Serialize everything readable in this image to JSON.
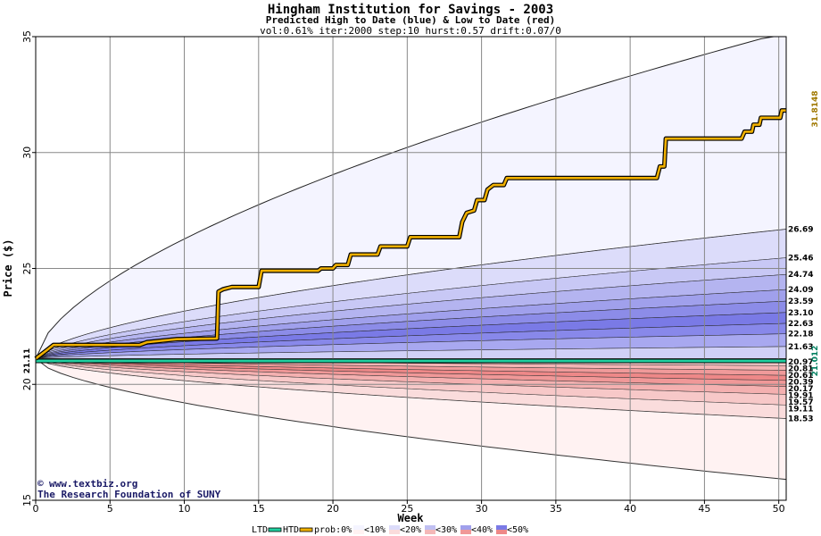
{
  "chart_data": {
    "type": "area",
    "title": "Hingham Institution for Savings - 2003",
    "subtitle": "Predicted High to Date (blue) &  Low to Date (red)",
    "params": "vol:0.61% iter:2000 step:10 hurst:0.57 drift:0.07/0",
    "xlabel": "Week",
    "ylabel": "Price ($)",
    "xlim": [
      0,
      50.5
    ],
    "ylim": [
      15,
      35
    ],
    "x_ticks": [
      0,
      5,
      10,
      15,
      20,
      25,
      30,
      35,
      40,
      45,
      50
    ],
    "y_ticks": [
      15,
      20,
      25,
      30,
      35
    ],
    "grid": true,
    "start_price": 21.11,
    "start_label": "21.11",
    "htd_label": "31.8148",
    "ltd_label": "21.012",
    "htd_color": "#b8860b",
    "ltd_color": "#008060",
    "high_bands": [
      {
        "end": 35.2,
        "label": "",
        "color": "#f4f4ff"
      },
      {
        "end": 26.69,
        "label": "26.69",
        "color": "#dcdcfa"
      },
      {
        "end": 25.46,
        "label": "25.46",
        "color": "#c8c8f5"
      },
      {
        "end": 24.74,
        "label": "24.74",
        "color": "#b4b4f0"
      },
      {
        "end": 24.09,
        "label": "24.09",
        "color": "#a0a0ec"
      },
      {
        "end": 23.59,
        "label": "23.59",
        "color": "#8c8ce8"
      },
      {
        "end": 23.1,
        "label": "23.10",
        "color": "#7a7ae6"
      },
      {
        "end": 22.63,
        "label": "22.63",
        "color": "#8888ea"
      },
      {
        "end": 22.18,
        "label": "22.18",
        "color": "#a8a8f0"
      },
      {
        "end": 21.63,
        "label": "21.63",
        "color": "#d0d0f7"
      }
    ],
    "low_bands": [
      {
        "end": 15.9,
        "label": "",
        "color": "#fff2f2"
      },
      {
        "end": 18.53,
        "label": "18.53",
        "color": "#fadcdc"
      },
      {
        "end": 19.11,
        "label": "19.11",
        "color": "#f7c8c8"
      },
      {
        "end": 19.57,
        "label": "19.57",
        "color": "#f4b0b0"
      },
      {
        "end": 19.91,
        "label": "19.91",
        "color": "#f09898"
      },
      {
        "end": 20.17,
        "label": "20.17",
        "color": "#ee8888"
      },
      {
        "end": 20.39,
        "label": "20.39",
        "color": "#f09a9a"
      },
      {
        "end": 20.61,
        "label": "20.61",
        "color": "#f4b4b4"
      },
      {
        "end": 20.81,
        "label": "20.81",
        "color": "#f8cccc"
      },
      {
        "end": 20.97,
        "label": "20.97",
        "color": "#fbe0e0"
      }
    ],
    "htd_series": {
      "name": "HTD",
      "points": [
        [
          0,
          21.11
        ],
        [
          0.7,
          21.45
        ],
        [
          1.2,
          21.7
        ],
        [
          7,
          21.7
        ],
        [
          7.5,
          21.82
        ],
        [
          9.5,
          21.95
        ],
        [
          12.2,
          21.98
        ],
        [
          12.3,
          24.0
        ],
        [
          12.6,
          24.1
        ],
        [
          13.2,
          24.2
        ],
        [
          15,
          24.2
        ],
        [
          15.2,
          24.9
        ],
        [
          19,
          24.9
        ],
        [
          19.2,
          25.0
        ],
        [
          20,
          25.0
        ],
        [
          20.2,
          25.15
        ],
        [
          21,
          25.15
        ],
        [
          21.2,
          25.6
        ],
        [
          23,
          25.6
        ],
        [
          23.2,
          25.95
        ],
        [
          25,
          25.95
        ],
        [
          25.2,
          26.35
        ],
        [
          28.5,
          26.35
        ],
        [
          28.7,
          27.0
        ],
        [
          29,
          27.4
        ],
        [
          29.5,
          27.5
        ],
        [
          29.7,
          27.95
        ],
        [
          30.2,
          27.95
        ],
        [
          30.4,
          28.4
        ],
        [
          30.8,
          28.6
        ],
        [
          31.5,
          28.6
        ],
        [
          31.7,
          28.9
        ],
        [
          41.8,
          28.9
        ],
        [
          42,
          29.4
        ],
        [
          42.3,
          29.4
        ],
        [
          42.4,
          30.6
        ],
        [
          47.5,
          30.6
        ],
        [
          47.7,
          30.9
        ],
        [
          48.2,
          30.9
        ],
        [
          48.3,
          31.2
        ],
        [
          48.7,
          31.2
        ],
        [
          48.8,
          31.5
        ],
        [
          50.1,
          31.5
        ],
        [
          50.2,
          31.8148
        ],
        [
          50.5,
          31.8148
        ]
      ]
    },
    "ltd_value": 21.012,
    "legend": {
      "ltd": "LTD",
      "htd": "HTD",
      "prob": "prob:0%",
      "items": [
        "<10%",
        "<20%",
        "<30%",
        "<40%",
        "<50%"
      ],
      "colors": [
        "#f4f4ff",
        "#dcdcfa",
        "#c0c0f2",
        "#a0a0ec",
        "#7a7ae6"
      ],
      "reds": [
        "#fff2f2",
        "#fadcdc",
        "#f4b8b8",
        "#f09898",
        "#ee8888"
      ]
    },
    "credit_url": "www.textbiz.org",
    "credit_org": "The Research Foundation of SUNY"
  }
}
